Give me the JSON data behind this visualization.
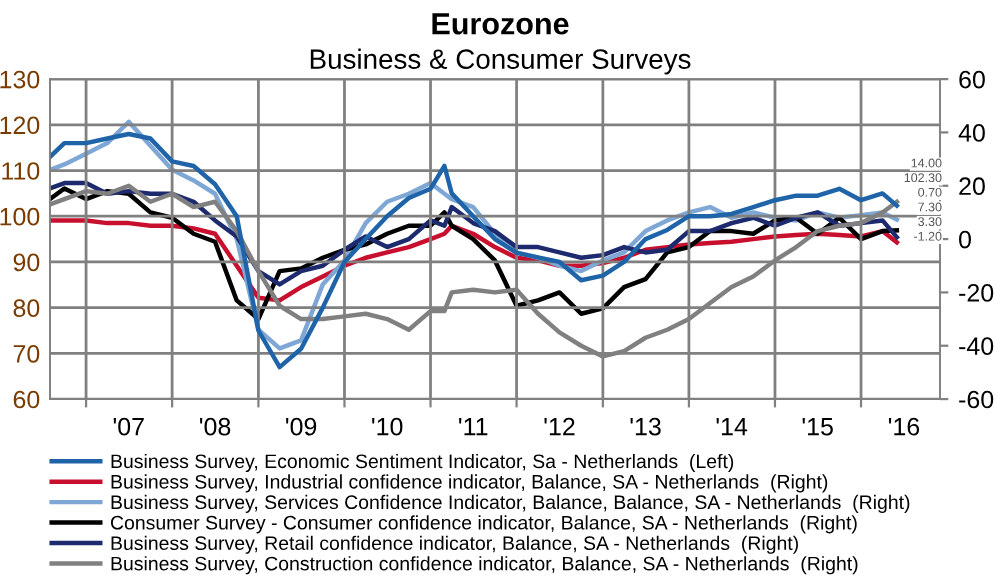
{
  "chart_data": {
    "type": "line",
    "title": "Eurozone",
    "subtitle": "Business & Consumer Surveys",
    "x": [
      "2006-08",
      "2006-10",
      "2007-01",
      "2007-04",
      "2007-07",
      "2007-10",
      "2008-01",
      "2008-04",
      "2008-07",
      "2008-10",
      "2009-01",
      "2009-04",
      "2009-07",
      "2009-10",
      "2010-01",
      "2010-04",
      "2010-07",
      "2010-10",
      "2011-01",
      "2011-03",
      "2011-04",
      "2011-07",
      "2011-10",
      "2012-01",
      "2012-04",
      "2012-07",
      "2012-10",
      "2013-01",
      "2013-04",
      "2013-07",
      "2013-10",
      "2014-01",
      "2014-04",
      "2014-07",
      "2014-10",
      "2015-01",
      "2015-04",
      "2015-07",
      "2015-10",
      "2016-01",
      "2016-04",
      "2016-06"
    ],
    "series": [
      {
        "name": "Business Survey, Economic Sentiment Indicator, Sa - Netherlands  (Left)",
        "color": "#1f64a8",
        "values": [
          113,
          116,
          116,
          117,
          118,
          117,
          112,
          111,
          107,
          100,
          75,
          67,
          71,
          80,
          90,
          95,
          100,
          104,
          106,
          111,
          105,
          100,
          95,
          92,
          91,
          90,
          86,
          87,
          90,
          95,
          97,
          100,
          100,
          100.5,
          102,
          103.5,
          104.5,
          104.5,
          106,
          103.5,
          105,
          102.3
        ]
      },
      {
        "name": "Business Survey, Industrial confidence indicator, Balance, SA - Netherlands  (Right)",
        "color": "#c8102e",
        "axis": "y2",
        "values": [
          7,
          7,
          7,
          6,
          6,
          5,
          5,
          4,
          2,
          -10,
          -22,
          -23,
          -18,
          -14,
          -10,
          -7,
          -5,
          -3,
          0,
          2,
          5,
          2,
          -3,
          -7,
          -8,
          -10,
          -10,
          -9,
          -7,
          -4,
          -3,
          -2,
          -1.5,
          -1,
          0,
          1,
          1.5,
          2,
          1.5,
          1,
          3,
          -1.2
        ]
      },
      {
        "name": "Business Survey, Services Confidence Indicator, Balance, Balance, SA - Netherlands  (Right)",
        "color": "#7fa7d6",
        "axis": "y2",
        "values": [
          26,
          28,
          32,
          36,
          44,
          35,
          26,
          22,
          17,
          0,
          -34,
          -41,
          -38,
          -17,
          -8,
          6,
          14,
          17,
          21,
          17,
          15,
          12,
          2,
          -5,
          -7,
          -10,
          -12,
          -8,
          -5,
          3,
          7,
          10,
          12,
          8,
          10,
          8,
          7,
          10,
          8,
          9,
          10,
          7.3
        ]
      },
      {
        "name": "Consumer Survey - Consumer confidence indicator, Balance, SA - Netherlands  (Right)",
        "color": "#000000",
        "axis": "y2",
        "values": [
          15,
          19,
          15,
          18,
          17,
          10,
          8,
          2,
          -1,
          -23,
          -30,
          -12,
          -11,
          -7,
          -4,
          -2,
          2,
          5,
          5,
          10,
          5,
          0,
          -8,
          -25,
          -23,
          -20,
          -28,
          -26,
          -18,
          -15,
          -5,
          -3,
          3,
          3,
          2,
          7,
          8,
          2,
          8,
          0,
          3,
          3.3
        ]
      },
      {
        "name": "Business Survey, Retail confidence indicator, Balance, SA - Netherlands  (Right)",
        "color": "#1e2a6e",
        "axis": "y2",
        "values": [
          19,
          21,
          21,
          17,
          18,
          17,
          17,
          14,
          7,
          1,
          -12,
          -17,
          -12,
          -10,
          -4,
          1,
          -3,
          0,
          7,
          5,
          12,
          6,
          3,
          -3,
          -3,
          -5,
          -7,
          -6,
          -3,
          -5,
          -4,
          3,
          3,
          6,
          8,
          5,
          8,
          10,
          5,
          6,
          7,
          0.7
        ]
      },
      {
        "name": "Business Survey, Construction confidence indicator, Balance, SA - Netherlands  (Right)",
        "color": "#808080",
        "axis": "y2",
        "values": [
          13,
          15,
          18,
          17,
          20,
          14,
          17,
          12,
          14,
          3,
          -12,
          -25,
          -30,
          -30,
          -29,
          -28,
          -30,
          -34,
          -27,
          -27,
          -20,
          -19,
          -20,
          -19,
          -28,
          -35,
          -40,
          -44,
          -42,
          -37,
          -34,
          -30,
          -24,
          -18,
          -14,
          -8,
          -3,
          3,
          5,
          6,
          10,
          14
        ]
      }
    ],
    "annotations": [
      "14.00",
      "102.30",
      "0.70",
      "7.30",
      "3.30",
      "-1.20"
    ],
    "xlim": [
      "2006-08",
      "2016-12"
    ],
    "xticks": [
      {
        "value": "2007-01",
        "label": null
      },
      {
        "value": "2007-07",
        "label": "'07"
      },
      {
        "value": "2008-01",
        "label": null
      },
      {
        "value": "2008-07",
        "label": "'08"
      },
      {
        "value": "2009-01",
        "label": null
      },
      {
        "value": "2009-07",
        "label": "'09"
      },
      {
        "value": "2010-01",
        "label": null
      },
      {
        "value": "2010-07",
        "label": "'10"
      },
      {
        "value": "2011-01",
        "label": null
      },
      {
        "value": "2011-07",
        "label": "'11"
      },
      {
        "value": "2012-01",
        "label": null
      },
      {
        "value": "2012-07",
        "label": "'12"
      },
      {
        "value": "2013-01",
        "label": null
      },
      {
        "value": "2013-07",
        "label": "'13"
      },
      {
        "value": "2014-01",
        "label": null
      },
      {
        "value": "2014-07",
        "label": "'14"
      },
      {
        "value": "2015-01",
        "label": null
      },
      {
        "value": "2015-07",
        "label": "'15"
      },
      {
        "value": "2016-01",
        "label": null
      },
      {
        "value": "2016-07",
        "label": "'16"
      }
    ],
    "ylim": [
      60,
      130
    ],
    "yticks": [
      60,
      70,
      80,
      90,
      100,
      110,
      120,
      130
    ],
    "y2lim": [
      -60,
      60
    ],
    "y2ticks": [
      -60,
      -40,
      -20,
      0,
      20,
      40,
      60
    ],
    "grid": true,
    "legend": "bottom",
    "marker": "none",
    "line_style": "solid"
  }
}
